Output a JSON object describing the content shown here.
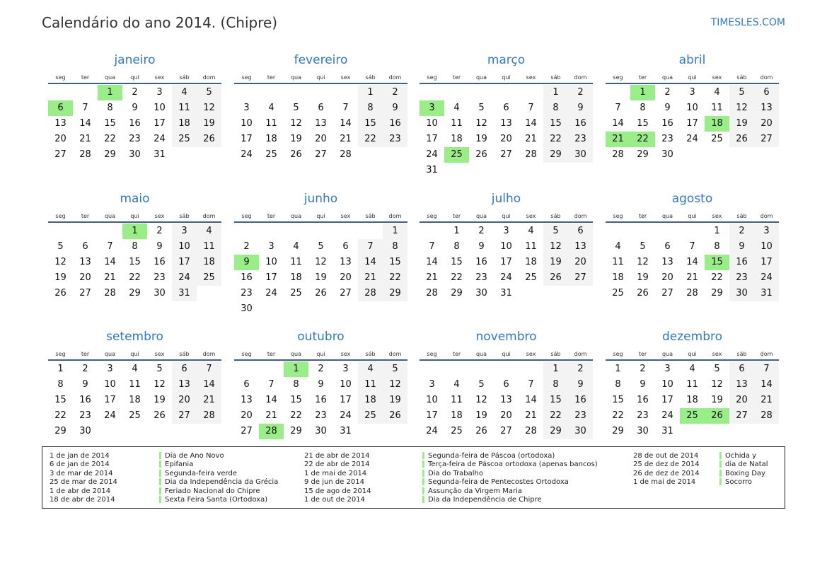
{
  "header": {
    "title": "Calendário do ano 2014. (Chipre)",
    "site": "TIMESLES.COM"
  },
  "calendar": {
    "year": 2014,
    "weekdays": [
      "seg",
      "ter",
      "qua",
      "qui",
      "sex",
      "sáb",
      "dom"
    ],
    "months": [
      "janeiro",
      "fevereiro",
      "março",
      "abril",
      "maio",
      "junho",
      "julho",
      "agosto",
      "setembro",
      "outubro",
      "novembro",
      "dezembro"
    ],
    "holidays": [
      "1-1",
      "1-6",
      "3-3",
      "3-25",
      "4-1",
      "4-18",
      "4-21",
      "4-22",
      "5-1",
      "6-9",
      "8-15",
      "10-1",
      "10-28",
      "12-25",
      "12-26"
    ],
    "colors": {
      "holiday": "#99ee88",
      "weekend": "#f3f3f3",
      "month_title": "#2f7bc4",
      "rule": "#3f5f8f"
    }
  },
  "legend": [
    {
      "date": "1 de jan de 2014",
      "name": "Dia de Ano Novo"
    },
    {
      "date": "6 de jan de 2014",
      "name": "Epifania"
    },
    {
      "date": "3 de mar de 2014",
      "name": "Segunda-feira verde"
    },
    {
      "date": "25 de mar de 2014",
      "name": "Dia da Independência da Grécia"
    },
    {
      "date": "1 de abr de 2014",
      "name": "Feriado Nacional do Chipre"
    },
    {
      "date": "18 de abr de 2014",
      "name": "Sexta Feira Santa (Ortodoxa)"
    },
    {
      "date": "21 de abr de 2014",
      "name": "Segunda-feira de Páscoa (ortodoxa)"
    },
    {
      "date": "22 de abr de 2014",
      "name": "Terça-feira de Páscoa ortodoxa (apenas bancos)"
    },
    {
      "date": "1 de mai de 2014",
      "name": "Dia do Trabalho"
    },
    {
      "date": "9 de jun de 2014",
      "name": "Segunda-feira de Pentecostes Ortodoxa"
    },
    {
      "date": "15 de ago de 2014",
      "name": "Assunção da Virgem Maria"
    },
    {
      "date": "1 de out de 2014",
      "name": "Dia da Independência de Chipre"
    },
    {
      "date": "28 de out de 2014",
      "name": "Ochida y"
    },
    {
      "date": "25 de dez de 2014",
      "name": "dia de Natal"
    },
    {
      "date": "26 de dez de 2014",
      "name": "Boxing Day"
    },
    {
      "date": "1 de mai de 2014",
      "name": "Socorro"
    }
  ]
}
